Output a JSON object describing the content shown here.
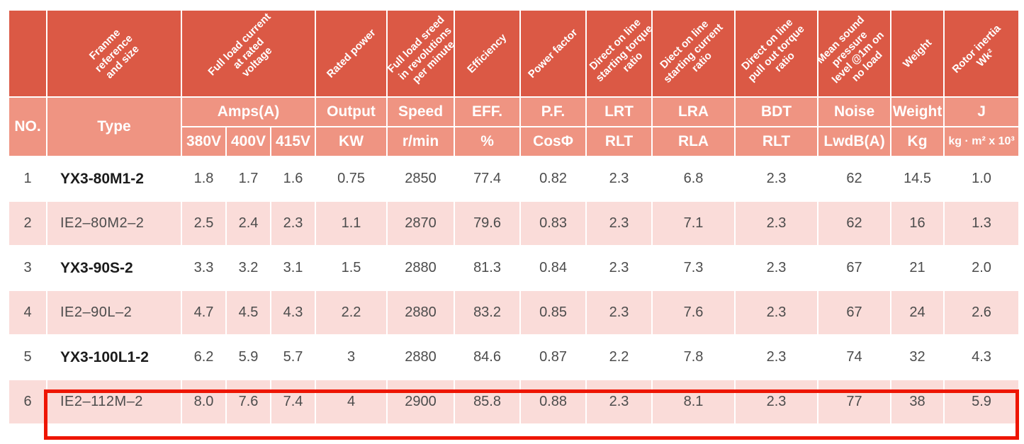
{
  "colors": {
    "header_dark_red": "#db5945",
    "header_salmon": "#ef9482",
    "row_pink": "#fadcd9",
    "row_white": "#ffffff",
    "highlight_red": "#ee1502",
    "data_text": "#4c4c4c"
  },
  "header": {
    "diagonal": [
      {
        "name": "diagonal-header-empty",
        "colspan": 1,
        "lines": []
      },
      {
        "name": "diagonal-header-frame-reference",
        "colspan": 1,
        "lines": [
          "Franme",
          "reference",
          "and size"
        ]
      },
      {
        "name": "diagonal-header-full-load-current",
        "colspan": 3,
        "lines": [
          "Full load current",
          "at rated",
          "voltage"
        ]
      },
      {
        "name": "diagonal-header-rated-power",
        "colspan": 1,
        "lines": [
          "Rated power"
        ]
      },
      {
        "name": "diagonal-header-full-load-speed",
        "colspan": 1,
        "lines": [
          "Full load sreed",
          "in revolutions",
          "per minute"
        ]
      },
      {
        "name": "diagonal-header-efficiency",
        "colspan": 1,
        "lines": [
          "Efficiency"
        ]
      },
      {
        "name": "diagonal-header-power-factor",
        "colspan": 1,
        "lines": [
          "Power factor"
        ]
      },
      {
        "name": "diagonal-header-dol-starting-torque",
        "colspan": 1,
        "lines": [
          "Direct on line",
          "starting torque",
          "ratio"
        ]
      },
      {
        "name": "diagonal-header-dol-starting-current",
        "colspan": 1,
        "lines": [
          "Diect on line",
          "starting current",
          "ratio"
        ]
      },
      {
        "name": "diagonal-header-dol-pull-out-torque",
        "colspan": 1,
        "lines": [
          "Direct on line",
          "pull out torque",
          "ratio"
        ]
      },
      {
        "name": "diagonal-header-mean-sound-pressure",
        "colspan": 1,
        "lines": [
          "Mean sound",
          "pressure",
          "level @1m on",
          "no load"
        ]
      },
      {
        "name": "diagonal-header-weight",
        "colspan": 1,
        "lines": [
          "Weight"
        ]
      },
      {
        "name": "diagonal-header-rotor-inertia",
        "colspan": 1,
        "lines": [
          "Rotor inertia",
          "Wk²"
        ]
      }
    ],
    "no_label": "NO.",
    "type_label": "Type",
    "amps_label": "Amps(A)",
    "voltage_labels": [
      "380V",
      "400V",
      "415V"
    ],
    "column_groups": [
      {
        "top": "Output",
        "bottom": "KW",
        "bottom_small": false
      },
      {
        "top": "Speed",
        "bottom": "r/min",
        "bottom_small": false
      },
      {
        "top": "EFF.",
        "bottom": "%",
        "bottom_small": false
      },
      {
        "top": "P.F.",
        "bottom": "CosΦ",
        "bottom_small": false
      },
      {
        "top": "LRT",
        "bottom": "RLT",
        "bottom_small": false
      },
      {
        "top": "LRA",
        "bottom": "RLA",
        "bottom_small": false
      },
      {
        "top": "BDT",
        "bottom": "RLT",
        "bottom_small": false
      },
      {
        "top": "Noise",
        "bottom": "LwdB(A)",
        "bottom_small": false
      },
      {
        "top": "Weight",
        "bottom": "Kg",
        "bottom_small": false
      },
      {
        "top": "J",
        "bottom": "kg · m² x 10³",
        "bottom_small": true
      }
    ]
  },
  "rows": [
    {
      "no": "1",
      "type": "YX3-80M1-2",
      "type_bold": true,
      "striped": false,
      "highlighted": false,
      "values": [
        "1.8",
        "1.7",
        "1.6",
        "0.75",
        "2850",
        "77.4",
        "0.82",
        "2.3",
        "6.8",
        "2.3",
        "62",
        "14.5",
        "1.0"
      ]
    },
    {
      "no": "2",
      "type": "IE2–80M2–2",
      "type_bold": false,
      "striped": true,
      "highlighted": false,
      "values": [
        "2.5",
        "2.4",
        "2.3",
        "1.1",
        "2870",
        "79.6",
        "0.83",
        "2.3",
        "7.1",
        "2.3",
        "62",
        "16",
        "1.3"
      ]
    },
    {
      "no": "3",
      "type": "YX3-90S-2",
      "type_bold": true,
      "striped": false,
      "highlighted": false,
      "values": [
        "3.3",
        "3.2",
        "3.1",
        "1.5",
        "2880",
        "81.3",
        "0.84",
        "2.3",
        "7.3",
        "2.3",
        "67",
        "21",
        "2.0"
      ]
    },
    {
      "no": "4",
      "type": "IE2–90L–2",
      "type_bold": false,
      "striped": true,
      "highlighted": false,
      "values": [
        "4.7",
        "4.5",
        "4.3",
        "2.2",
        "2880",
        "83.2",
        "0.85",
        "2.3",
        "7.6",
        "2.3",
        "67",
        "24",
        "2.6"
      ]
    },
    {
      "no": "5",
      "type": "YX3-100L1-2",
      "type_bold": true,
      "striped": false,
      "highlighted": false,
      "values": [
        "6.2",
        "5.9",
        "5.7",
        "3",
        "2880",
        "84.6",
        "0.87",
        "2.2",
        "7.8",
        "2.3",
        "74",
        "32",
        "4.3"
      ]
    },
    {
      "no": "6",
      "type": "IE2–112M–2",
      "type_bold": false,
      "striped": true,
      "highlighted": true,
      "values": [
        "8.0",
        "7.6",
        "7.4",
        "4",
        "2900",
        "85.8",
        "0.88",
        "2.3",
        "8.1",
        "2.3",
        "77",
        "38",
        "5.9"
      ]
    }
  ],
  "highlight": {
    "highlighted_row_no": "6"
  }
}
